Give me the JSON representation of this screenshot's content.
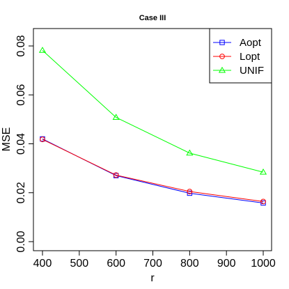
{
  "chart_data": {
    "type": "line",
    "title": "Case III",
    "xlabel": "r",
    "ylabel": "MSE",
    "x": [
      400,
      600,
      800,
      1000
    ],
    "xlim": [
      400,
      1000
    ],
    "ylim": [
      0,
      0.08
    ],
    "x_ticks": [
      "400",
      "500",
      "600",
      "700",
      "800",
      "900",
      "1000"
    ],
    "y_ticks": [
      "0.00",
      "0.02",
      "0.04",
      "0.06",
      "0.08"
    ],
    "legend_position": "top-right",
    "grid": false,
    "series": [
      {
        "name": "Aopt",
        "color": "#0000ff",
        "marker": "square",
        "values": [
          0.042,
          0.027,
          0.0198,
          0.0158
        ]
      },
      {
        "name": "Lopt",
        "color": "#ff0000",
        "marker": "circle",
        "values": [
          0.0418,
          0.0272,
          0.0205,
          0.0164
        ]
      },
      {
        "name": "UNIF",
        "color": "#00ff00",
        "marker": "triangle",
        "values": [
          0.0782,
          0.0508,
          0.0362,
          0.0284
        ]
      }
    ]
  }
}
